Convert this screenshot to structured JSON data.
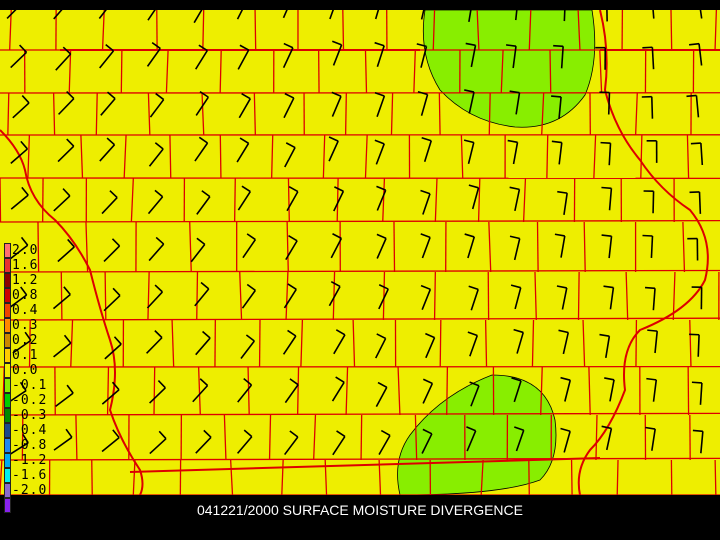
{
  "caption": "041221/2000 SURFACE MOISTURE DIVERGENCE",
  "colors": {
    "background": "#eeee00",
    "county_lines": "#dd0000",
    "convergence_area": "#88ee00",
    "barbs": "#000000",
    "frame": "#000000"
  },
  "legend": [
    {
      "label": "2.0",
      "color": "#ff7070"
    },
    {
      "label": "1.6",
      "color": "#e83030"
    },
    {
      "label": "1.2",
      "color": "#8b0000"
    },
    {
      "label": "0.8",
      "color": "#cc0000"
    },
    {
      "label": "0.4",
      "color": "#ee4400"
    },
    {
      "label": "0.3",
      "color": "#ff8800"
    },
    {
      "label": "0.2",
      "color": "#cc8800"
    },
    {
      "label": "0.1",
      "color": "#ffcc00"
    },
    {
      "label": "0.0",
      "color": "#eeee00"
    },
    {
      "label": "-0.1",
      "color": "#88ee00"
    },
    {
      "label": "-0.2",
      "color": "#00cc00"
    },
    {
      "label": "-0.3",
      "color": "#008800"
    },
    {
      "label": "-0.4",
      "color": "#1a4a8a"
    },
    {
      "label": "-0.8",
      "color": "#2288ee"
    },
    {
      "label": "-1.2",
      "color": "#00aaee"
    },
    {
      "label": "-1.6",
      "color": "#00eeee"
    },
    {
      "label": "-2.0",
      "color": "#8a6acc"
    },
    {
      "label": "",
      "color": "#8822ee"
    }
  ]
}
